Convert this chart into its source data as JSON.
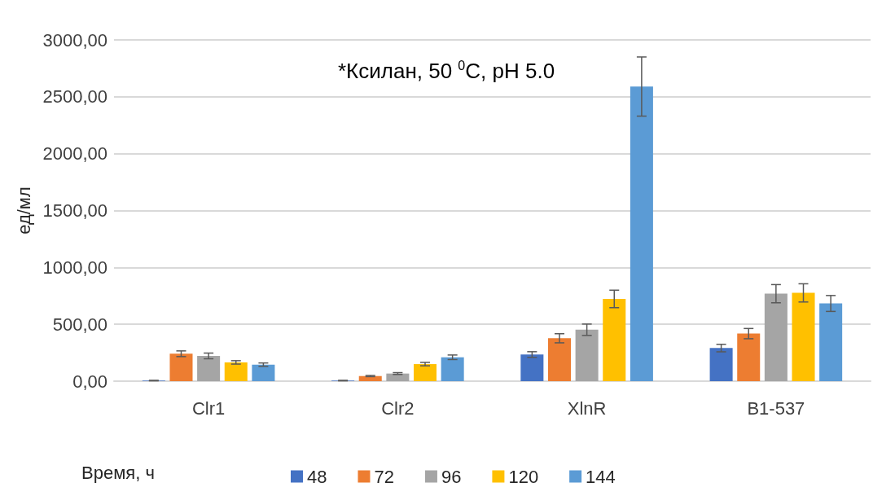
{
  "chart_data": {
    "type": "bar",
    "ylabel": "ед/мл",
    "annotations": [
      "*Ксилан, 50 $^{0}$C, pH 5.0"
    ],
    "legend_title": "Время, ч",
    "categories": [
      "Clr1",
      "Clr2",
      "XlnR",
      "B1-537"
    ],
    "series": [
      {
        "name": "48",
        "color": "#4472c4",
        "values": [
          5,
          5,
          234,
          291
        ],
        "errors": [
          2,
          2,
          25,
          33
        ]
      },
      {
        "name": "72",
        "color": "#ed7d31",
        "values": [
          241,
          45,
          377,
          418
        ],
        "errors": [
          25,
          5,
          40,
          45
        ]
      },
      {
        "name": "96",
        "color": "#a5a5a5",
        "values": [
          222,
          67,
          452,
          769
        ],
        "errors": [
          25,
          8,
          50,
          80
        ]
      },
      {
        "name": "120",
        "color": "#ffc000",
        "values": [
          165,
          150,
          723,
          776
        ],
        "errors": [
          15,
          15,
          77,
          80
        ]
      },
      {
        "name": "144",
        "color": "#5b9bd5",
        "values": [
          145,
          210,
          2590,
          683
        ],
        "errors": [
          15,
          20,
          260,
          70
        ]
      }
    ],
    "ylim": [
      0,
      3000
    ],
    "yticks": [
      {
        "value": 0,
        "label": "0,00"
      },
      {
        "value": 500,
        "label": "500,00"
      },
      {
        "value": 1000,
        "label": "1000,00"
      },
      {
        "value": 1500,
        "label": "1500,00"
      },
      {
        "value": 2000,
        "label": "2000,00"
      },
      {
        "value": 2500,
        "label": "2500,00"
      },
      {
        "value": 3000,
        "label": "3000,00"
      }
    ],
    "grid": "y",
    "legend": "bottom"
  }
}
